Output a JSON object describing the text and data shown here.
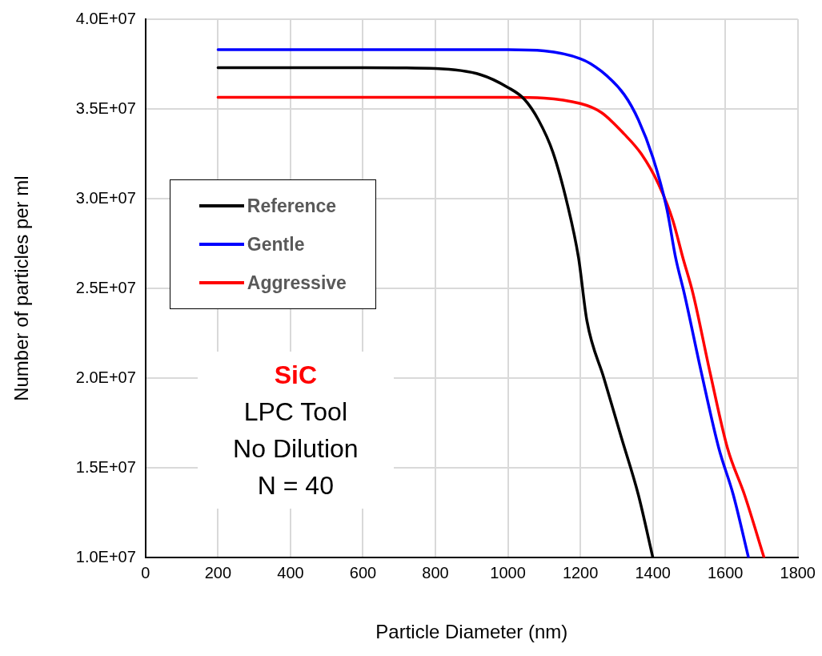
{
  "chart_data": {
    "type": "line",
    "xlabel": "Particle Diameter (nm)",
    "ylabel": "Number of particles per ml",
    "xlim": [
      0,
      1800
    ],
    "xticks": [
      0,
      200,
      400,
      600,
      800,
      1000,
      1200,
      1400,
      1600,
      1800
    ],
    "ylim": [
      10000000,
      40000000
    ],
    "yticks": [
      {
        "value": 10000000,
        "label": "1.0E+07"
      },
      {
        "value": 15000000,
        "label": "1.5E+07"
      },
      {
        "value": 20000000,
        "label": "2.0E+07"
      },
      {
        "value": 25000000,
        "label": "2.5E+07"
      },
      {
        "value": 30000000,
        "label": "3.0E+07"
      },
      {
        "value": 35000000,
        "label": "3.5E+07"
      },
      {
        "value": 40000000,
        "label": "4.0E+07"
      }
    ],
    "grid": true,
    "legend": "left",
    "marker": "none",
    "line_style": "solid",
    "annotations": [
      "SiC",
      "LPC Tool",
      "No Dilution",
      "N = 40"
    ],
    "series": [
      {
        "name": "Reference",
        "color": "#000000",
        "x": [
          200,
          400,
          600,
          800,
          926,
          1000,
          1045,
          1084,
          1124,
          1164,
          1195,
          1218,
          1265,
          1313,
          1360,
          1400
        ],
        "values": [
          37300000,
          37300000,
          37300000,
          37250000,
          36900000,
          36200000,
          35550000,
          34400000,
          32600000,
          29700000,
          26700000,
          23200000,
          20000000,
          16700000,
          13500000,
          10000000
        ]
      },
      {
        "name": "Gentle",
        "color": "#0000ff",
        "x": [
          200,
          400,
          600,
          800,
          1000,
          1200,
          1258,
          1321,
          1360,
          1400,
          1439,
          1463,
          1487,
          1534,
          1582,
          1622,
          1664
        ],
        "values": [
          38300000,
          38300000,
          38300000,
          38300000,
          38300000,
          37800000,
          37100000,
          35800000,
          34400000,
          32300000,
          29400000,
          26700000,
          24700000,
          20300000,
          16100000,
          13500000,
          10000000
        ]
      },
      {
        "name": "Aggressive",
        "color": "#ff0000",
        "x": [
          200,
          400,
          600,
          800,
          1000,
          1200,
          1258,
          1321,
          1368,
          1416,
          1455,
          1483,
          1511,
          1558,
          1606,
          1653,
          1707
        ],
        "values": [
          35650000,
          35650000,
          35650000,
          35650000,
          35650000,
          35300000,
          34800000,
          33600000,
          32500000,
          30800000,
          28800000,
          26700000,
          24700000,
          20300000,
          16100000,
          13500000,
          10000000
        ]
      }
    ]
  }
}
